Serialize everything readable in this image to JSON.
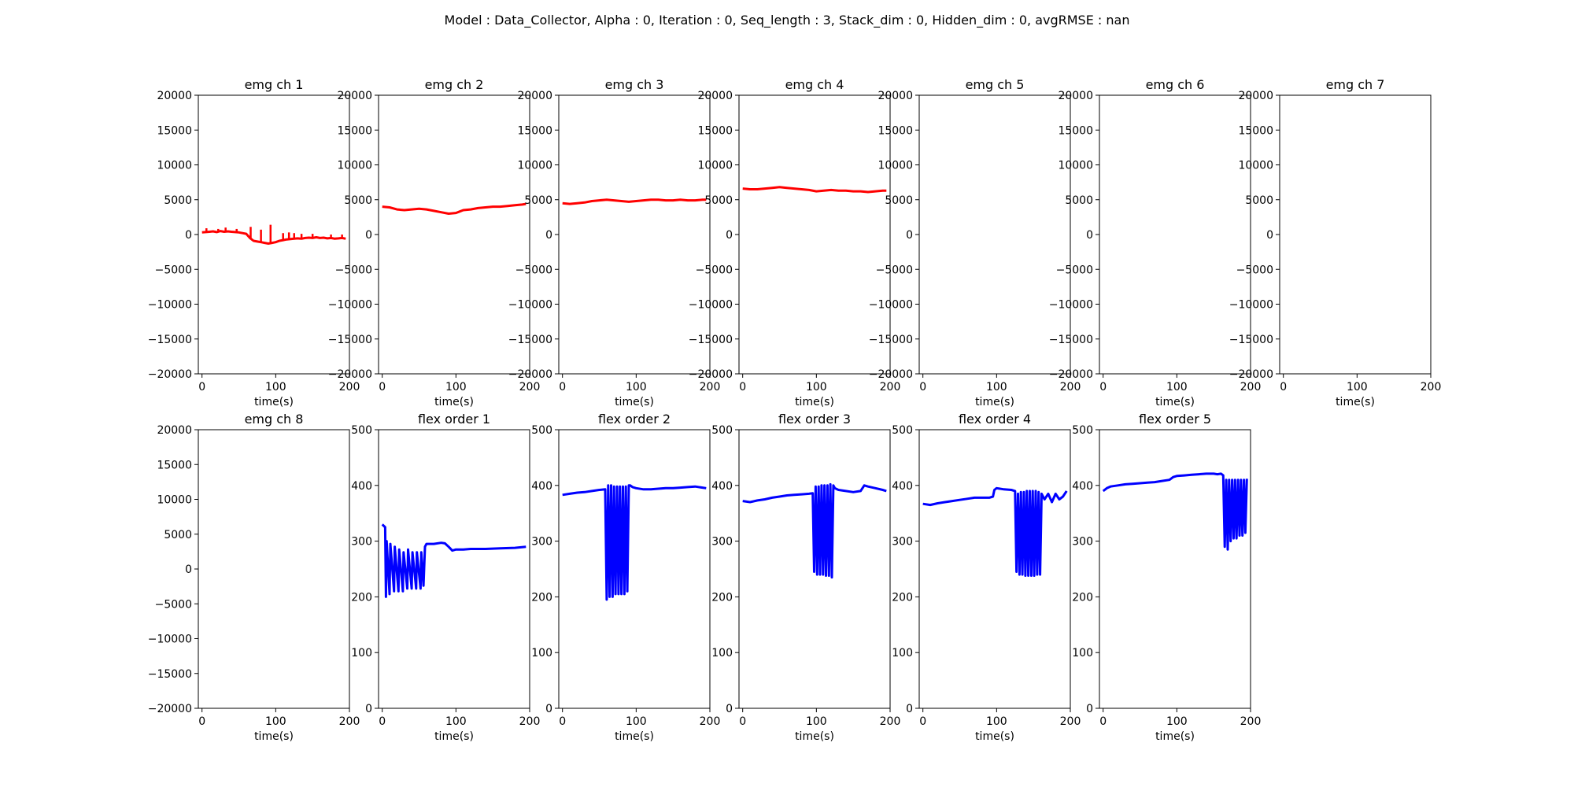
{
  "figure": {
    "suptitle": "Model : Data_Collector, Alpha : 0, Iteration : 0, Seq_length : 3, Stack_dim : 0, Hidden_dim : 0, avgRMSE : nan"
  },
  "chart_data": [
    {
      "type": "line",
      "title": "emg ch 1",
      "xlabel": "time(s)",
      "xlim": [
        -5,
        200
      ],
      "ylim": [
        -20000,
        20000
      ],
      "xticks": [
        0,
        100,
        200
      ],
      "yticks": [
        -20000,
        -15000,
        -10000,
        -5000,
        0,
        5000,
        10000,
        15000,
        20000
      ],
      "color": "#ff0000",
      "series": [
        {
          "x": [
            0,
            10,
            15,
            20,
            25,
            30,
            35,
            40,
            45,
            50,
            55,
            60,
            65,
            70,
            75,
            80,
            85,
            90,
            95,
            100,
            105,
            110,
            115,
            120,
            125,
            130,
            135,
            140,
            145,
            150,
            155,
            160,
            165,
            170,
            175,
            180,
            185,
            190,
            195
          ],
          "y": [
            300,
            400,
            450,
            350,
            500,
            400,
            450,
            400,
            350,
            300,
            200,
            100,
            -500,
            -900,
            -1000,
            -1100,
            -1200,
            -1300,
            -1200,
            -1100,
            -900,
            -800,
            -700,
            -650,
            -600,
            -550,
            -600,
            -500,
            -450,
            -500,
            -400,
            -500,
            -450,
            -550,
            -500,
            -600,
            -550,
            -500,
            -600
          ],
          "spikes": [
            {
              "x": 6,
              "y": 900
            },
            {
              "x": 22,
              "y": 800
            },
            {
              "x": 32,
              "y": 1000
            },
            {
              "x": 47,
              "y": 800
            },
            {
              "x": 66,
              "y": 1100
            },
            {
              "x": 80,
              "y": 700
            },
            {
              "x": 93,
              "y": 1400
            },
            {
              "x": 110,
              "y": 200
            },
            {
              "x": 118,
              "y": 300
            },
            {
              "x": 125,
              "y": 200
            },
            {
              "x": 135,
              "y": 100
            },
            {
              "x": 150,
              "y": 100
            },
            {
              "x": 175,
              "y": 0
            },
            {
              "x": 190,
              "y": 0
            }
          ]
        }
      ]
    },
    {
      "type": "line",
      "title": "emg ch 2",
      "xlabel": "time(s)",
      "xlim": [
        -5,
        200
      ],
      "ylim": [
        -20000,
        20000
      ],
      "xticks": [
        0,
        100,
        200
      ],
      "yticks": [
        -20000,
        -15000,
        -10000,
        -5000,
        0,
        5000,
        10000,
        15000,
        20000
      ],
      "color": "#ff0000",
      "series": [
        {
          "x": [
            0,
            10,
            20,
            30,
            40,
            50,
            60,
            70,
            80,
            90,
            100,
            105,
            110,
            120,
            130,
            140,
            150,
            160,
            170,
            180,
            190,
            195
          ],
          "y": [
            4000,
            3900,
            3600,
            3500,
            3600,
            3700,
            3600,
            3400,
            3200,
            3000,
            3100,
            3300,
            3500,
            3600,
            3800,
            3900,
            4000,
            4000,
            4100,
            4200,
            4300,
            4400
          ]
        }
      ]
    },
    {
      "type": "line",
      "title": "emg ch 3",
      "xlabel": "time(s)",
      "xlim": [
        -5,
        200
      ],
      "ylim": [
        -20000,
        20000
      ],
      "xticks": [
        0,
        100,
        200
      ],
      "yticks": [
        -20000,
        -15000,
        -10000,
        -5000,
        0,
        5000,
        10000,
        15000,
        20000
      ],
      "color": "#ff0000",
      "series": [
        {
          "x": [
            0,
            10,
            20,
            30,
            40,
            50,
            60,
            70,
            80,
            90,
            100,
            110,
            120,
            130,
            140,
            150,
            160,
            170,
            180,
            190,
            195
          ],
          "y": [
            4500,
            4400,
            4500,
            4600,
            4800,
            4900,
            5000,
            4900,
            4800,
            4700,
            4800,
            4900,
            5000,
            5000,
            4900,
            4900,
            5000,
            4900,
            4900,
            5000,
            5000
          ]
        }
      ]
    },
    {
      "type": "line",
      "title": "emg ch 4",
      "xlabel": "time(s)",
      "xlim": [
        -5,
        200
      ],
      "ylim": [
        -20000,
        20000
      ],
      "xticks": [
        0,
        100,
        200
      ],
      "yticks": [
        -20000,
        -15000,
        -10000,
        -5000,
        0,
        5000,
        10000,
        15000,
        20000
      ],
      "color": "#ff0000",
      "series": [
        {
          "x": [
            0,
            10,
            20,
            30,
            40,
            50,
            60,
            70,
            80,
            90,
            100,
            110,
            120,
            130,
            140,
            150,
            160,
            170,
            180,
            190,
            195
          ],
          "y": [
            6600,
            6500,
            6500,
            6600,
            6700,
            6800,
            6700,
            6600,
            6500,
            6400,
            6200,
            6300,
            6400,
            6300,
            6300,
            6200,
            6200,
            6100,
            6200,
            6300,
            6300
          ]
        }
      ]
    },
    {
      "type": "line",
      "title": "emg ch 5",
      "xlabel": "time(s)",
      "xlim": [
        -5,
        200
      ],
      "ylim": [
        -20000,
        20000
      ],
      "xticks": [
        0,
        100,
        200
      ],
      "yticks": [
        -20000,
        -15000,
        -10000,
        -5000,
        0,
        5000,
        10000,
        15000,
        20000
      ],
      "color": "#ff0000",
      "series": []
    },
    {
      "type": "line",
      "title": "emg ch 6",
      "xlabel": "time(s)",
      "xlim": [
        -5,
        200
      ],
      "ylim": [
        -20000,
        20000
      ],
      "xticks": [
        0,
        100,
        200
      ],
      "yticks": [
        -20000,
        -15000,
        -10000,
        -5000,
        0,
        5000,
        10000,
        15000,
        20000
      ],
      "color": "#ff0000",
      "series": []
    },
    {
      "type": "line",
      "title": "emg ch 7",
      "xlabel": "time(s)",
      "xlim": [
        -5,
        200
      ],
      "ylim": [
        -20000,
        20000
      ],
      "xticks": [
        0,
        100,
        200
      ],
      "yticks": [
        -20000,
        -15000,
        -10000,
        -5000,
        0,
        5000,
        10000,
        15000,
        20000
      ],
      "color": "#ff0000",
      "series": []
    },
    {
      "type": "line",
      "title": "emg ch 8",
      "xlabel": "time(s)",
      "xlim": [
        -5,
        200
      ],
      "ylim": [
        -20000,
        20000
      ],
      "xticks": [
        0,
        100,
        200
      ],
      "yticks": [
        -20000,
        -15000,
        -10000,
        -5000,
        0,
        5000,
        10000,
        15000,
        20000
      ],
      "color": "#ff0000",
      "series": []
    },
    {
      "type": "line",
      "title": "flex order 1",
      "xlabel": "time(s)",
      "xlim": [
        -5,
        200
      ],
      "ylim": [
        0,
        500
      ],
      "xticks": [
        0,
        100,
        200
      ],
      "yticks": [
        0,
        100,
        200,
        300,
        400,
        500
      ],
      "color": "#0000ff",
      "series": [
        {
          "x": [
            0,
            4,
            5,
            6,
            10,
            11,
            16,
            17,
            22,
            23,
            28,
            29,
            34,
            35,
            40,
            41,
            46,
            47,
            52,
            53,
            56,
            58,
            60,
            70,
            80,
            85,
            90,
            95,
            100,
            110,
            120,
            140,
            160,
            180,
            195
          ],
          "y": [
            330,
            325,
            200,
            300,
            205,
            295,
            210,
            290,
            210,
            285,
            210,
            280,
            215,
            285,
            215,
            280,
            215,
            280,
            215,
            280,
            220,
            290,
            295,
            295,
            297,
            296,
            290,
            283,
            285,
            285,
            286,
            286,
            287,
            288,
            290
          ]
        }
      ]
    },
    {
      "type": "line",
      "title": "flex order 2",
      "xlabel": "time(s)",
      "xlim": [
        -5,
        200
      ],
      "ylim": [
        0,
        500
      ],
      "xticks": [
        0,
        100,
        200
      ],
      "yticks": [
        0,
        100,
        200,
        300,
        400,
        500
      ],
      "color": "#0000ff",
      "series": [
        {
          "x": [
            0,
            10,
            20,
            30,
            40,
            50,
            58,
            60,
            62,
            64,
            66,
            68,
            70,
            72,
            74,
            76,
            78,
            80,
            82,
            84,
            86,
            88,
            90,
            92,
            95,
            100,
            110,
            120,
            130,
            140,
            150,
            160,
            170,
            180,
            190,
            195
          ],
          "y": [
            383,
            385,
            387,
            388,
            390,
            392,
            393,
            195,
            400,
            200,
            400,
            200,
            398,
            205,
            398,
            205,
            398,
            205,
            398,
            205,
            398,
            210,
            400,
            400,
            397,
            395,
            393,
            393,
            394,
            395,
            395,
            396,
            397,
            398,
            396,
            395
          ]
        }
      ]
    },
    {
      "type": "line",
      "title": "flex order 3",
      "xlabel": "time(s)",
      "xlim": [
        -5,
        200
      ],
      "ylim": [
        0,
        500
      ],
      "xticks": [
        0,
        100,
        200
      ],
      "yticks": [
        0,
        100,
        200,
        300,
        400,
        500
      ],
      "color": "#0000ff",
      "series": [
        {
          "x": [
            0,
            10,
            20,
            30,
            40,
            50,
            60,
            70,
            80,
            90,
            95,
            97,
            99,
            101,
            103,
            105,
            107,
            109,
            111,
            113,
            115,
            117,
            119,
            121,
            123,
            125,
            130,
            140,
            150,
            160,
            165,
            170,
            180,
            190,
            195
          ],
          "y": [
            372,
            370,
            373,
            375,
            378,
            380,
            382,
            383,
            384,
            385,
            386,
            245,
            398,
            240,
            398,
            240,
            400,
            240,
            400,
            238,
            400,
            238,
            402,
            235,
            400,
            395,
            392,
            390,
            388,
            390,
            400,
            398,
            395,
            392,
            390
          ]
        }
      ]
    },
    {
      "type": "line",
      "title": "flex order 4",
      "xlabel": "time(s)",
      "xlim": [
        -5,
        200
      ],
      "ylim": [
        0,
        500
      ],
      "xticks": [
        0,
        100,
        200
      ],
      "yticks": [
        0,
        100,
        200,
        300,
        400,
        500
      ],
      "color": "#0000ff",
      "series": [
        {
          "x": [
            0,
            10,
            20,
            30,
            40,
            50,
            60,
            70,
            80,
            90,
            95,
            97,
            100,
            110,
            120,
            125,
            127,
            129,
            131,
            133,
            135,
            137,
            139,
            141,
            143,
            145,
            147,
            149,
            151,
            153,
            155,
            157,
            159,
            161,
            165,
            170,
            175,
            180,
            185,
            190,
            195
          ],
          "y": [
            367,
            365,
            368,
            370,
            372,
            374,
            376,
            378,
            378,
            378,
            380,
            392,
            395,
            393,
            392,
            390,
            245,
            385,
            240,
            388,
            240,
            388,
            238,
            390,
            238,
            390,
            238,
            390,
            238,
            390,
            240,
            388,
            240,
            385,
            375,
            385,
            370,
            385,
            375,
            380,
            390
          ]
        }
      ]
    },
    {
      "type": "line",
      "title": "flex order 5",
      "xlabel": "time(s)",
      "xlim": [
        -5,
        200
      ],
      "ylim": [
        0,
        500
      ],
      "xticks": [
        0,
        100,
        200
      ],
      "yticks": [
        0,
        100,
        200,
        300,
        400,
        500
      ],
      "color": "#0000ff",
      "series": [
        {
          "x": [
            0,
            5,
            10,
            20,
            30,
            40,
            50,
            60,
            70,
            80,
            90,
            95,
            100,
            110,
            120,
            130,
            140,
            150,
            155,
            160,
            163,
            165,
            167,
            169,
            171,
            173,
            175,
            177,
            179,
            181,
            183,
            185,
            187,
            189,
            191,
            193,
            195
          ],
          "y": [
            390,
            395,
            398,
            400,
            402,
            403,
            404,
            405,
            406,
            408,
            410,
            415,
            417,
            418,
            419,
            420,
            421,
            421,
            420,
            421,
            418,
            290,
            410,
            285,
            410,
            300,
            410,
            305,
            410,
            305,
            410,
            310,
            410,
            310,
            410,
            315,
            412
          ]
        }
      ]
    }
  ]
}
